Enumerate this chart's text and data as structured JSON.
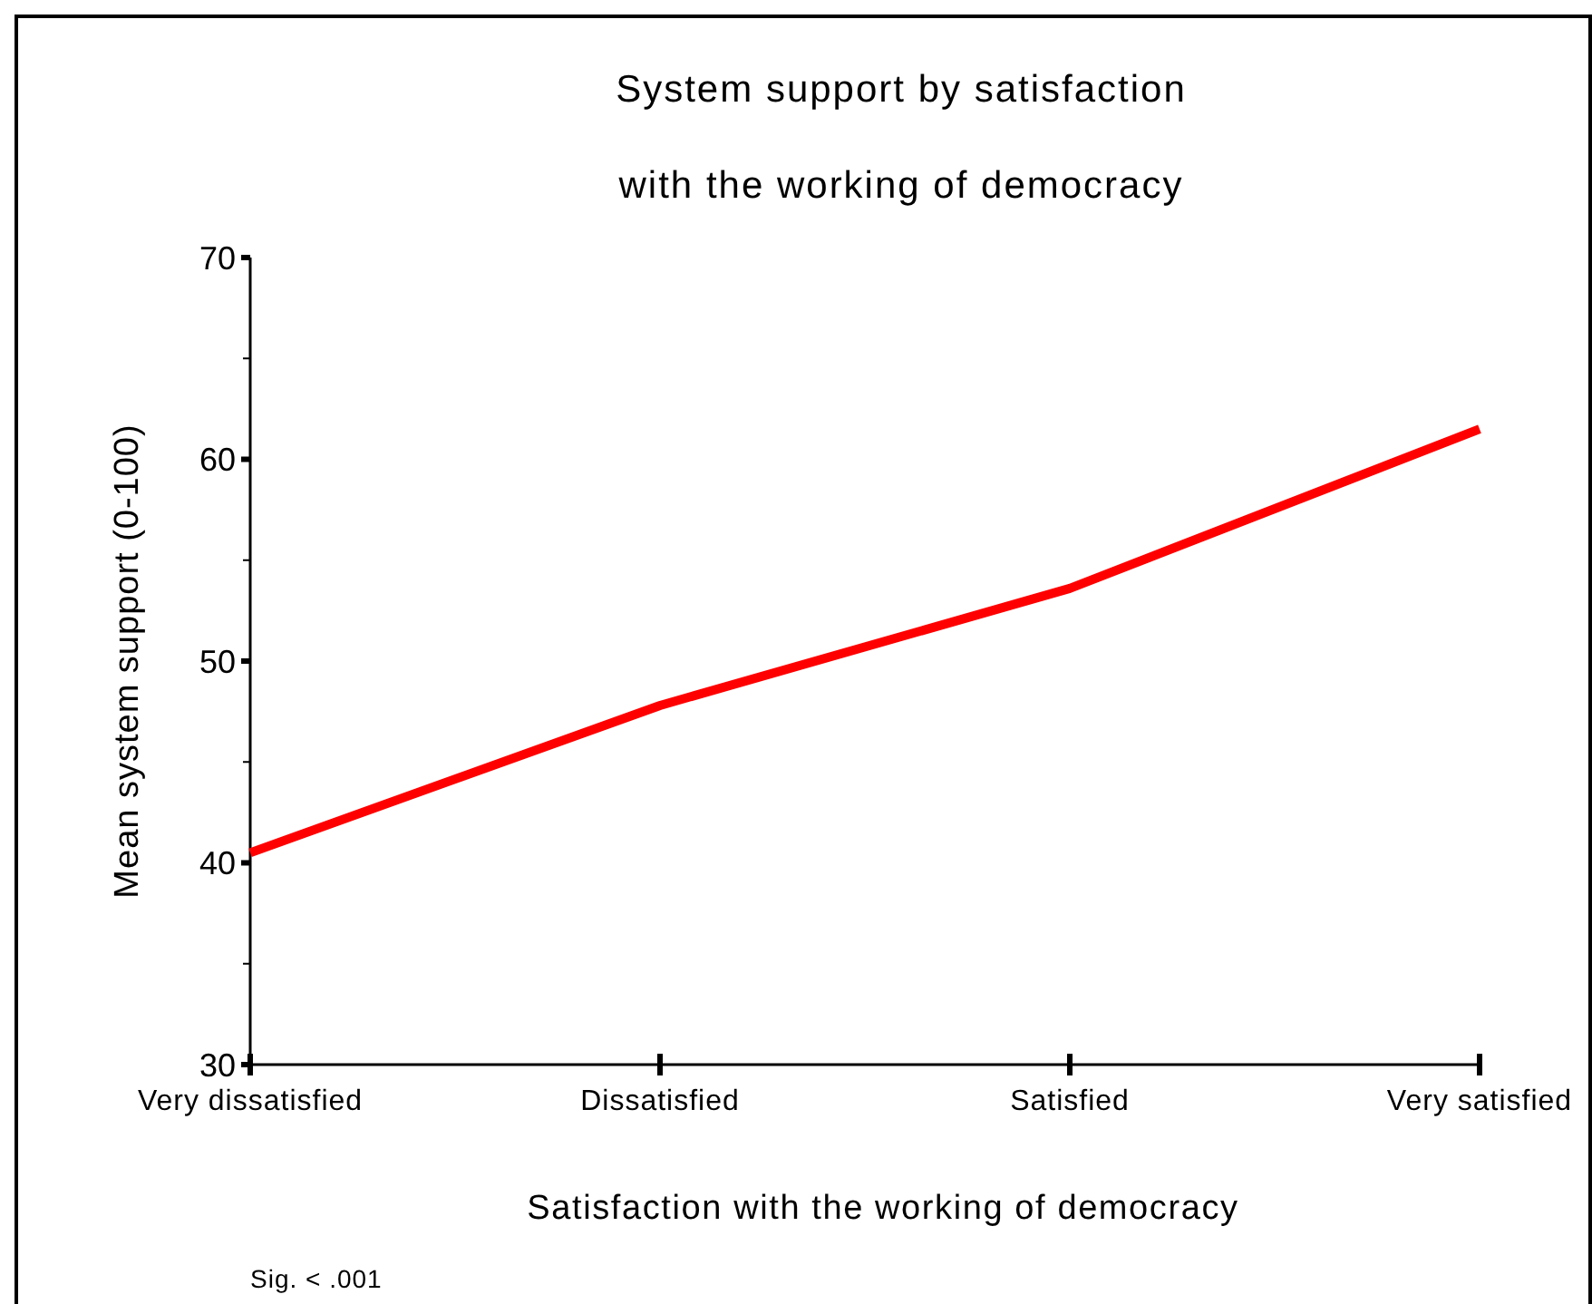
{
  "chart_data": {
    "type": "line",
    "title": "System support by satisfaction\nwith the working of democracy",
    "xlabel": "Satisfaction with the working of democracy",
    "ylabel": "Mean system support (0-100)",
    "categories": [
      "Very dissatisfied",
      "Dissatisfied",
      "Satisfied",
      "Very satisfied"
    ],
    "series": [
      {
        "color": "#ff0000",
        "values": [
          40.5,
          47.8,
          53.6,
          61.5
        ]
      }
    ],
    "ylim": [
      30,
      70
    ],
    "yticks": [
      30,
      {
        "value": 35,
        "label": null
      },
      40,
      {
        "value": 45,
        "label": null
      },
      50,
      {
        "value": 55,
        "label": null
      },
      60,
      {
        "value": 65,
        "label": null
      },
      70
    ],
    "grid": false,
    "marker": "none",
    "line_style": "solid",
    "annotations": [
      "Sig. < .001"
    ]
  }
}
